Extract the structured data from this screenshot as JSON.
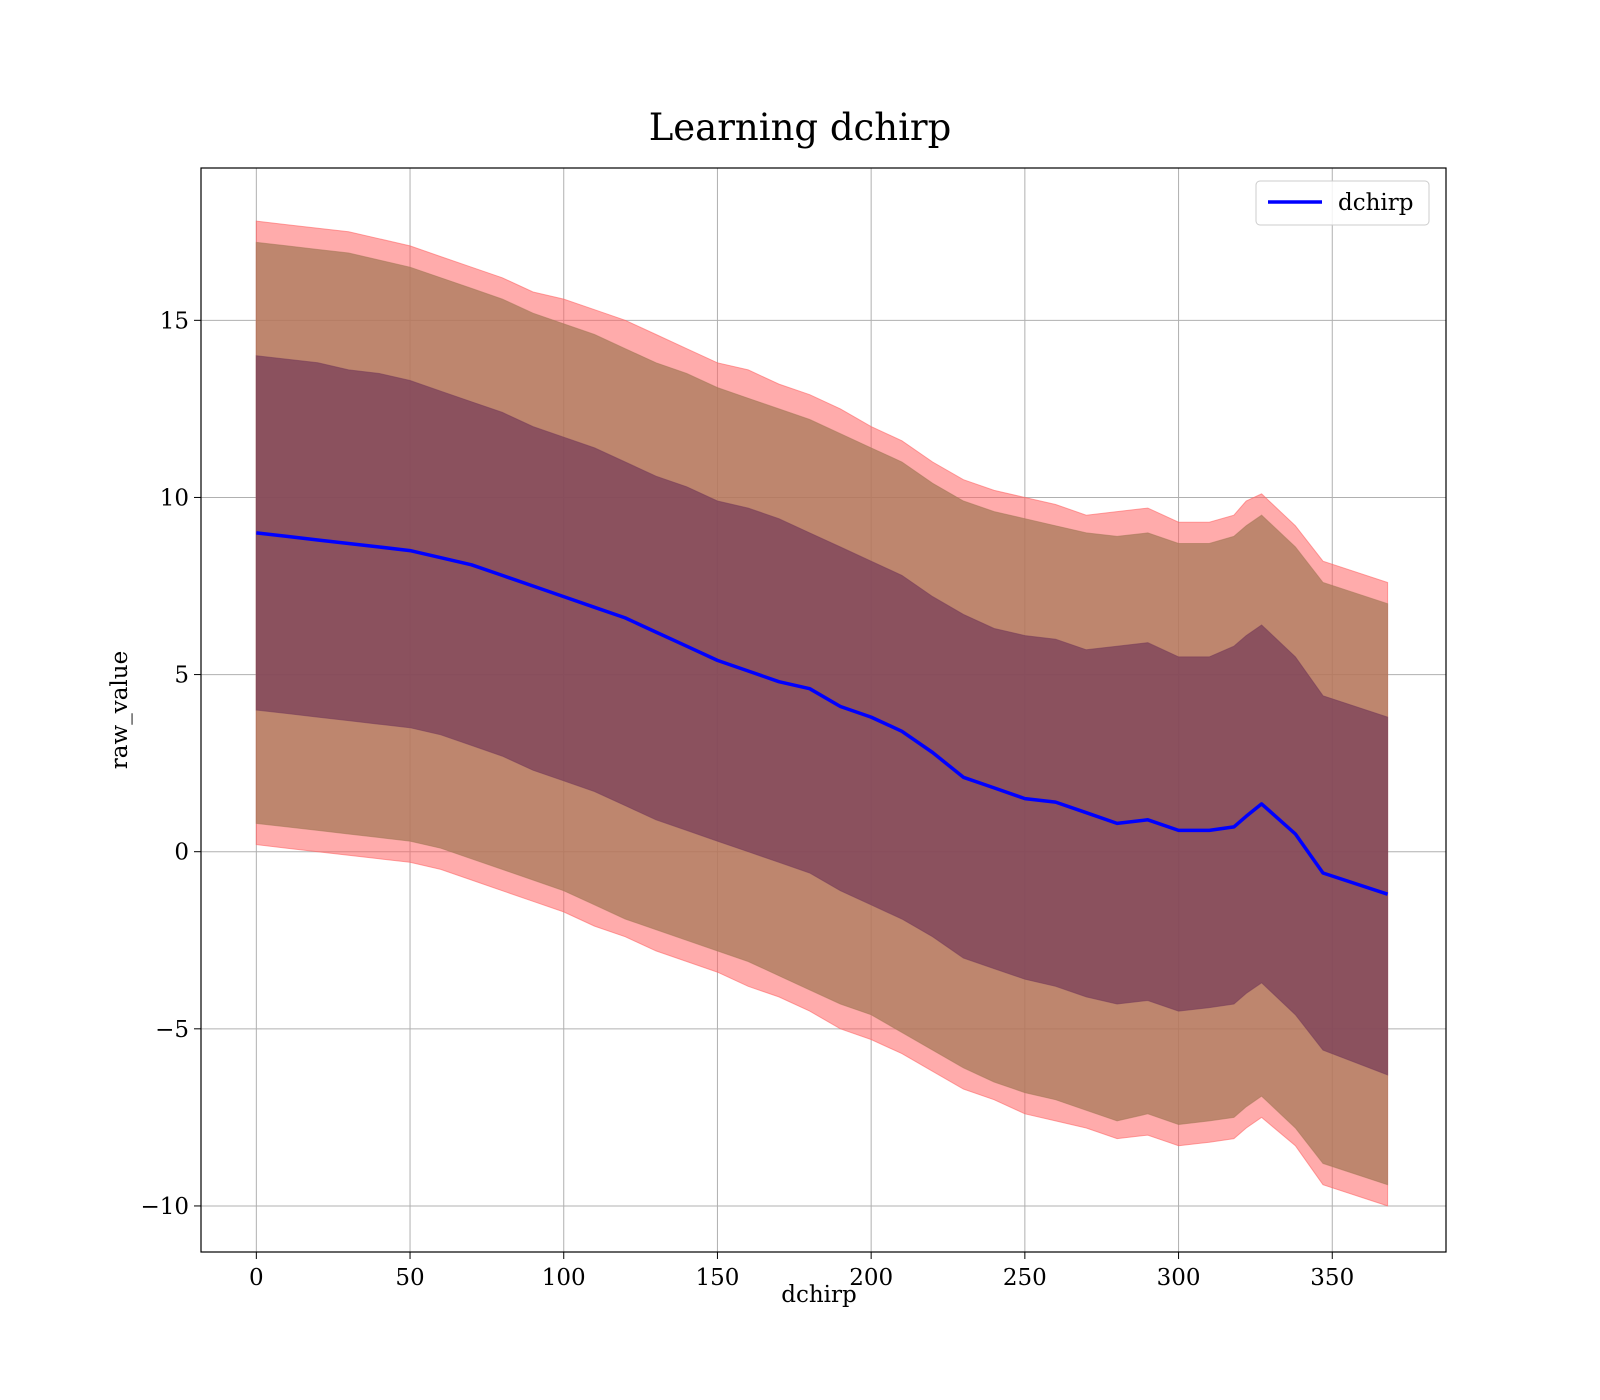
{
  "chart_data": {
    "type": "line",
    "title": "Learning dchirp",
    "xlabel": "dchirp",
    "ylabel": "raw_value",
    "xlim": [
      -18,
      387
    ],
    "ylim": [
      -11.3,
      19.3
    ],
    "xticks": [
      0,
      50,
      100,
      150,
      200,
      250,
      300,
      350
    ],
    "yticks": [
      -10,
      -5,
      0,
      5,
      10,
      15
    ],
    "xtick_labels": [
      "0",
      "50",
      "100",
      "150",
      "200",
      "250",
      "300",
      "350"
    ],
    "ytick_labels": [
      "−10",
      "−5",
      "0",
      "5",
      "10",
      "15"
    ],
    "grid": true,
    "legend_position": "top-right",
    "colors": {
      "line": "#0000ff",
      "band_outer": "#ff6666",
      "band_middle": "#a87a5a",
      "band_inner": "#7a3f5a",
      "grid": "#b0b0b0"
    },
    "series": [
      {
        "name": "dchirp",
        "x": [
          0,
          10,
          20,
          30,
          40,
          50,
          60,
          70,
          80,
          90,
          100,
          110,
          120,
          130,
          140,
          150,
          160,
          170,
          180,
          190,
          200,
          210,
          220,
          230,
          240,
          250,
          260,
          270,
          280,
          290,
          300,
          310,
          318,
          322,
          327,
          338,
          347,
          368
        ],
        "y": [
          9.0,
          8.9,
          8.8,
          8.7,
          8.6,
          8.5,
          8.3,
          8.1,
          7.8,
          7.5,
          7.2,
          6.9,
          6.6,
          6.2,
          5.8,
          5.4,
          5.1,
          4.8,
          4.6,
          4.1,
          3.8,
          3.4,
          2.8,
          2.1,
          1.8,
          1.5,
          1.4,
          1.1,
          0.8,
          0.9,
          0.6,
          0.6,
          0.7,
          1.0,
          1.35,
          0.5,
          -0.6,
          -1.2
        ]
      }
    ],
    "bands": [
      {
        "level": "outer",
        "upper": [
          17.8,
          17.7,
          17.6,
          17.5,
          17.3,
          17.1,
          16.8,
          16.5,
          16.2,
          15.8,
          15.6,
          15.3,
          15.0,
          14.6,
          14.2,
          13.8,
          13.6,
          13.2,
          12.9,
          12.5,
          12.0,
          11.6,
          11.0,
          10.5,
          10.2,
          10.0,
          9.8,
          9.5,
          9.6,
          9.7,
          9.3,
          9.3,
          9.5,
          9.9,
          10.1,
          9.2,
          8.2,
          7.6
        ],
        "lower": [
          0.2,
          0.1,
          0.0,
          -0.1,
          -0.2,
          -0.3,
          -0.5,
          -0.8,
          -1.1,
          -1.4,
          -1.7,
          -2.1,
          -2.4,
          -2.8,
          -3.1,
          -3.4,
          -3.8,
          -4.1,
          -4.5,
          -5.0,
          -5.3,
          -5.7,
          -6.2,
          -6.7,
          -7.0,
          -7.4,
          -7.6,
          -7.8,
          -8.1,
          -8.0,
          -8.3,
          -8.2,
          -8.1,
          -7.8,
          -7.5,
          -8.3,
          -9.4,
          -10.0
        ]
      },
      {
        "level": "middle",
        "upper": [
          17.2,
          17.1,
          17.0,
          16.9,
          16.7,
          16.5,
          16.2,
          15.9,
          15.6,
          15.2,
          14.9,
          14.6,
          14.2,
          13.8,
          13.5,
          13.1,
          12.8,
          12.5,
          12.2,
          11.8,
          11.4,
          11.0,
          10.4,
          9.9,
          9.6,
          9.4,
          9.2,
          9.0,
          8.9,
          9.0,
          8.7,
          8.7,
          8.9,
          9.2,
          9.5,
          8.6,
          7.6,
          7.0
        ],
        "lower": [
          0.8,
          0.7,
          0.6,
          0.5,
          0.4,
          0.3,
          0.1,
          -0.2,
          -0.5,
          -0.8,
          -1.1,
          -1.5,
          -1.9,
          -2.2,
          -2.5,
          -2.8,
          -3.1,
          -3.5,
          -3.9,
          -4.3,
          -4.6,
          -5.1,
          -5.6,
          -6.1,
          -6.5,
          -6.8,
          -7.0,
          -7.3,
          -7.6,
          -7.4,
          -7.7,
          -7.6,
          -7.5,
          -7.2,
          -6.9,
          -7.8,
          -8.8,
          -9.4
        ]
      },
      {
        "level": "inner",
        "upper": [
          14.0,
          13.9,
          13.8,
          13.6,
          13.5,
          13.3,
          13.0,
          12.7,
          12.4,
          12.0,
          11.7,
          11.4,
          11.0,
          10.6,
          10.3,
          9.9,
          9.7,
          9.4,
          9.0,
          8.6,
          8.2,
          7.8,
          7.2,
          6.7,
          6.3,
          6.1,
          6.0,
          5.7,
          5.8,
          5.9,
          5.5,
          5.5,
          5.8,
          6.1,
          6.4,
          5.5,
          4.4,
          3.8
        ],
        "lower": [
          4.0,
          3.9,
          3.8,
          3.7,
          3.6,
          3.5,
          3.3,
          3.0,
          2.7,
          2.3,
          2.0,
          1.7,
          1.3,
          0.9,
          0.6,
          0.3,
          0.0,
          -0.3,
          -0.6,
          -1.1,
          -1.5,
          -1.9,
          -2.4,
          -3.0,
          -3.3,
          -3.6,
          -3.8,
          -4.1,
          -4.3,
          -4.2,
          -4.5,
          -4.4,
          -4.3,
          -4.0,
          -3.7,
          -4.6,
          -5.6,
          -6.3
        ]
      }
    ]
  }
}
